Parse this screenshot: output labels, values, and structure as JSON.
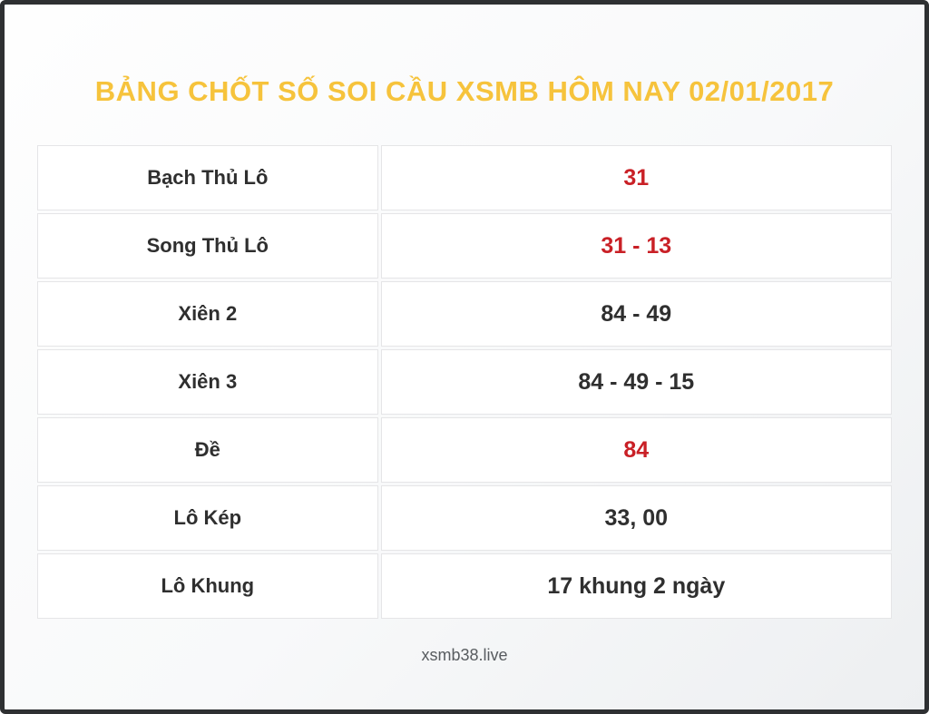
{
  "page": {
    "title": "BẢNG CHỐT SỐ SOI CẦU XSMB HÔM NAY 02/01/2017",
    "footer": "xsmb38.live"
  },
  "colors": {
    "title_yellow": "#f6c33c",
    "highlight_red": "#c92026",
    "text_dark": "#2f2f2f",
    "frame_dark": "#2e3032",
    "cell_border": "#e5e5e7"
  },
  "table": {
    "rows": [
      {
        "label": "Bạch Thủ Lô",
        "value": "31",
        "highlight": true
      },
      {
        "label": "Song Thủ Lô",
        "value": "31 - 13",
        "highlight": true
      },
      {
        "label": "Xiên 2",
        "value": "84 - 49",
        "highlight": false
      },
      {
        "label": "Xiên 3",
        "value": "84 - 49 - 15",
        "highlight": false
      },
      {
        "label": "Đề",
        "value": "84",
        "highlight": true
      },
      {
        "label": "Lô Kép",
        "value": "33, 00",
        "highlight": false
      },
      {
        "label": "Lô Khung",
        "value": "17 khung 2 ngày",
        "highlight": false
      }
    ]
  }
}
